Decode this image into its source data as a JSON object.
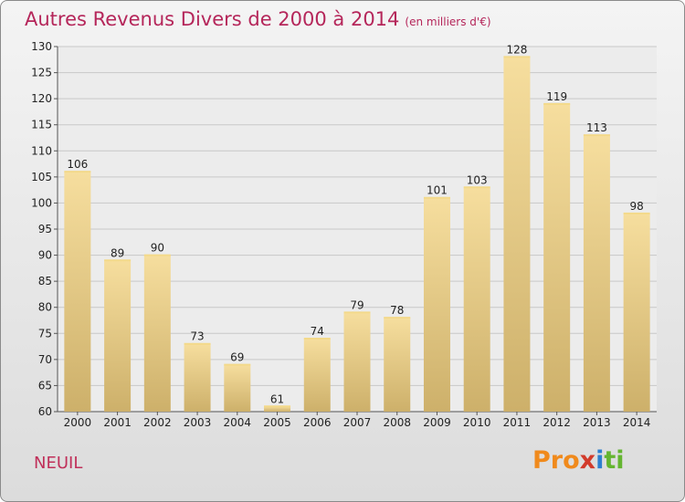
{
  "header": {
    "title": "Autres Revenus Divers de 2000 à 2014",
    "unit": "(en milliers d'€)"
  },
  "footer": {
    "commune": "NEUIL",
    "logo": {
      "p1": "Pro",
      "p2": "x",
      "p3": "i",
      "p4": "ti"
    }
  },
  "colors": {
    "title": "#b5265a",
    "bar_light": "#f6de9e",
    "bar_dark": "#cdb06a",
    "grid": "#c8c8c8"
  },
  "chart_data": {
    "type": "bar",
    "title": "Autres Revenus Divers de 2000 à 2014",
    "subtitle": "(en milliers d'€)",
    "categories": [
      "2000",
      "2001",
      "2002",
      "2003",
      "2004",
      "2005",
      "2006",
      "2007",
      "2008",
      "2009",
      "2010",
      "2011",
      "2012",
      "2013",
      "2014"
    ],
    "values": [
      106,
      89,
      90,
      73,
      69,
      61,
      74,
      79,
      78,
      101,
      103,
      128,
      119,
      113,
      98
    ],
    "ylim": [
      60,
      130
    ],
    "yticks": [
      60,
      65,
      70,
      75,
      80,
      85,
      90,
      95,
      100,
      105,
      110,
      115,
      120,
      125,
      130
    ],
    "grid": true,
    "legend": "none"
  }
}
